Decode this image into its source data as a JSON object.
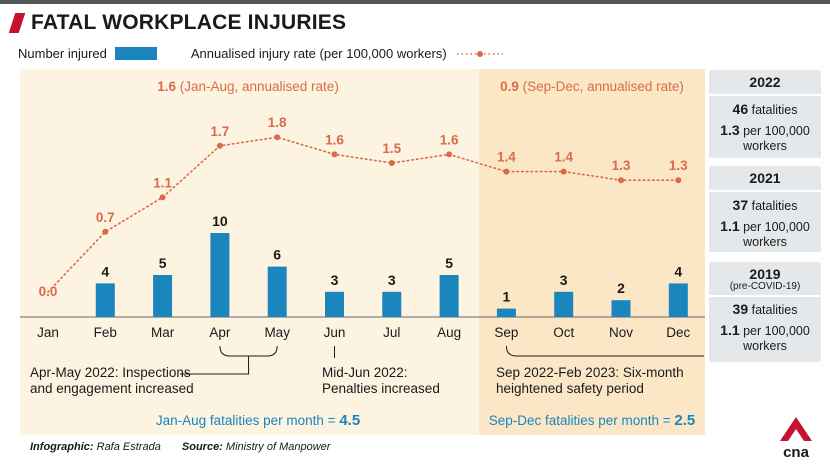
{
  "title": "FATAL WORKPLACE INJURIES",
  "legend": {
    "bars": "Number injured",
    "line": "Annualised injury rate (per 100,000 workers)"
  },
  "colors": {
    "bar": "#1a86bd",
    "rate": "#d96b4a",
    "shade_jan_aug": "#fdf3e1",
    "shade_sep_dec": "#fbe7c6",
    "accent": "#c4122f"
  },
  "chart_data": {
    "type": "bar",
    "categories": [
      "Jan",
      "Feb",
      "Mar",
      "Apr",
      "May",
      "Jun",
      "Jul",
      "Aug",
      "Sep",
      "Oct",
      "Nov",
      "Dec"
    ],
    "series": [
      {
        "name": "Number injured",
        "type": "bar",
        "values": [
          0,
          4,
          5,
          10,
          6,
          3,
          3,
          5,
          1,
          3,
          2,
          4
        ]
      },
      {
        "name": "Annualised injury rate (per 100,000 workers)",
        "type": "line",
        "values": [
          0.0,
          0.7,
          1.1,
          1.7,
          1.8,
          1.6,
          1.5,
          1.6,
          1.4,
          1.4,
          1.3,
          1.3
        ]
      }
    ],
    "bar_labels": [
      "",
      "4",
      "5",
      "10",
      "6",
      "3",
      "3",
      "5",
      "1",
      "3",
      "2",
      "4"
    ],
    "rate_labels": [
      "0.0",
      "0.7",
      "1.1",
      "1.7",
      "1.8",
      "1.6",
      "1.5",
      "1.6",
      "1.4",
      "1.4",
      "1.3",
      "1.3"
    ],
    "period_headers": [
      {
        "value": "1.6",
        "text": "(Jan-Aug, annualised rate)"
      },
      {
        "value": "0.9",
        "text": "(Sep-Dec, annualised rate)"
      }
    ],
    "annotations": [
      {
        "id": "apr-may",
        "lines": [
          "Apr-May 2022: Inspections",
          "and engagement increased"
        ]
      },
      {
        "id": "jun",
        "lines": [
          "Mid-Jun 2022:",
          "Penalties increased"
        ]
      },
      {
        "id": "sep",
        "lines": [
          "Sep 2022-Feb 2023: Six-month",
          "heightened safety period"
        ]
      }
    ],
    "period_summaries": [
      {
        "text": "Jan-Aug fatalities per month = ",
        "value": "4.5"
      },
      {
        "text": "Sep-Dec fatalities per month = ",
        "value": "2.5"
      }
    ]
  },
  "panels": [
    {
      "year": "2022",
      "sub": "",
      "fatalities": "46",
      "fatalities_label": "fatalities",
      "rate": "1.3",
      "rate_label": "per 100,000",
      "rate_label2": "workers"
    },
    {
      "year": "2021",
      "sub": "",
      "fatalities": "37",
      "fatalities_label": "fatalities",
      "rate": "1.1",
      "rate_label": "per 100,000",
      "rate_label2": "workers"
    },
    {
      "year": "2019",
      "sub": "(pre-COVID-19)",
      "fatalities": "39",
      "fatalities_label": "fatalities",
      "rate": "1.1",
      "rate_label": "per 100,000",
      "rate_label2": "workers"
    }
  ],
  "footer": {
    "infographic_label": "Infographic:",
    "infographic": "Rafa Estrada",
    "source_label": "Source:",
    "source": "Ministry of Manpower"
  },
  "logo_text": "cna"
}
